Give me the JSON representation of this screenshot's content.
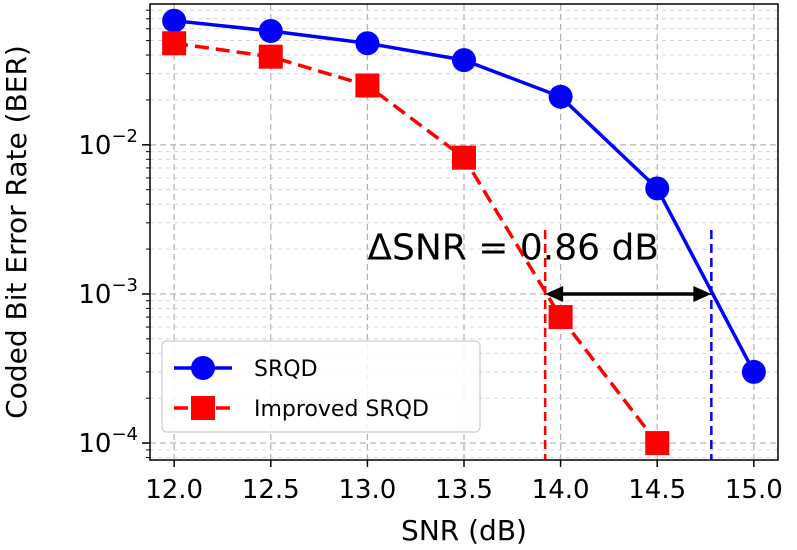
{
  "chart_data": {
    "type": "line",
    "title": "",
    "xlabel": "SNR (dB)",
    "ylabel": "Coded Bit Error Rate (BER)",
    "xlim": [
      11.875,
      15.125
    ],
    "ylim": [
      7.7e-05,
      0.088
    ],
    "yscale": "log",
    "grid": true,
    "legend_position": "lower-left",
    "x_ticks": [
      12.0,
      12.5,
      13.0,
      13.5,
      14.0,
      14.5,
      15.0
    ],
    "x_tick_labels": [
      "12.0",
      "12.5",
      "13.0",
      "13.5",
      "14.0",
      "14.5",
      "15.0"
    ],
    "y_ticks": [
      {
        "value": 0.01,
        "base": "10",
        "exp": "−2"
      },
      {
        "value": 0.001,
        "base": "10",
        "exp": "−3"
      },
      {
        "value": 0.0001,
        "base": "10",
        "exp": "−4"
      }
    ],
    "series": [
      {
        "name": "SRQD",
        "color": "#0000ff",
        "linestyle": "solid",
        "marker": "circle",
        "x": [
          12.0,
          12.5,
          13.0,
          13.5,
          14.0,
          14.5,
          15.0
        ],
        "y": [
          0.068,
          0.058,
          0.048,
          0.037,
          0.021,
          0.0051,
          0.0003
        ]
      },
      {
        "name": "Improved SRQD",
        "color": "#ff0000",
        "linestyle": "dashed",
        "marker": "square",
        "x": [
          12.0,
          12.5,
          13.0,
          13.5,
          14.0,
          14.5
        ],
        "y": [
          0.048,
          0.039,
          0.025,
          0.0082,
          0.0007,
          0.0001
        ]
      }
    ],
    "reference_lines": [
      {
        "x": 13.92,
        "color": "#ff0000",
        "style": "dashed"
      },
      {
        "x": 14.78,
        "color": "#0000ff",
        "style": "dashed"
      }
    ],
    "annotation": {
      "text": "ΔSNR = 0.86 dB",
      "arrow_x_start": 13.92,
      "arrow_x_end": 14.78,
      "arrow_y": 0.001,
      "text_x": 13.0,
      "text_y": 0.0017
    }
  }
}
